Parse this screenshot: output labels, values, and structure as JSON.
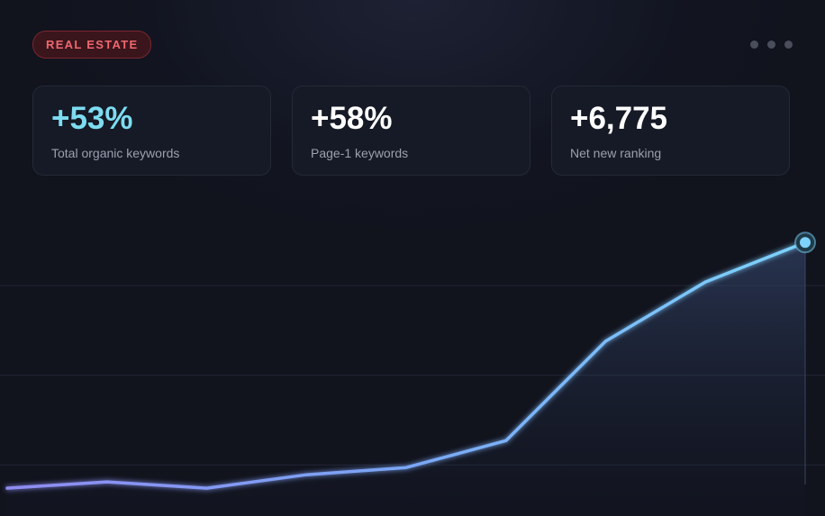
{
  "badge": "REAL ESTATE",
  "stats": [
    {
      "value": "+53%",
      "label": "Total organic keywords"
    },
    {
      "value": "+58%",
      "label": "Page-1 keywords"
    },
    {
      "value": "+6,775",
      "label": "Net new ranking"
    }
  ],
  "chart_data": {
    "type": "line",
    "categories": [
      null,
      null,
      null,
      null,
      null,
      null,
      null,
      null,
      null
    ],
    "series": [
      {
        "color": "#7dd3fc",
        "values": [
          0.74,
          0.81,
          0.74,
          0.89,
          0.97,
          1.27,
          2.38,
          3.04,
          3.48
        ]
      }
    ],
    "ylim": [
      0.43,
      4
    ],
    "yticks": [
      1,
      2,
      3
    ],
    "grid": true
  }
}
